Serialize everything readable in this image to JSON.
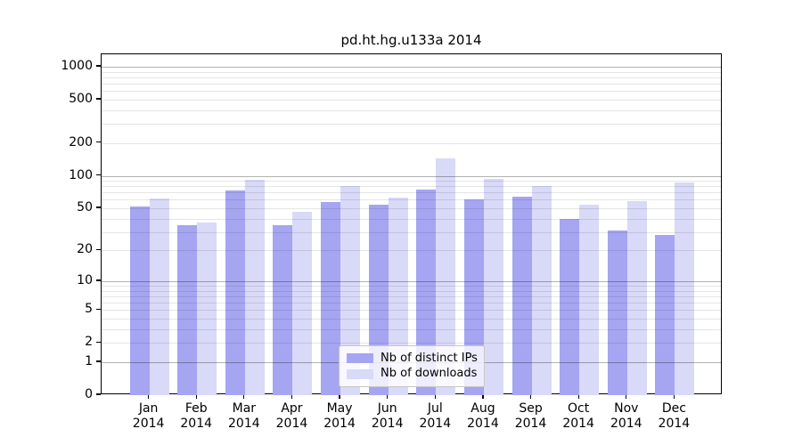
{
  "figure": {
    "background": "#ffffff",
    "text_color": "#000000",
    "spine_color": "#000000"
  },
  "chart_data": {
    "type": "bar",
    "title": "pd.ht.hg.u133a 2014",
    "categories": [
      "Jan 2014",
      "Feb 2014",
      "Mar 2014",
      "Apr 2014",
      "May 2014",
      "Jun 2014",
      "Jul 2014",
      "Aug 2014",
      "Sep 2014",
      "Oct 2014",
      "Nov 2014",
      "Dec 2014"
    ],
    "x_tick_lines": [
      [
        "Jan",
        "2014"
      ],
      [
        "Feb",
        "2014"
      ],
      [
        "Mar",
        "2014"
      ],
      [
        "Apr",
        "2014"
      ],
      [
        "May",
        "2014"
      ],
      [
        "Jun",
        "2014"
      ],
      [
        "Jul",
        "2014"
      ],
      [
        "Aug",
        "2014"
      ],
      [
        "Sep",
        "2014"
      ],
      [
        "Oct",
        "2014"
      ],
      [
        "Nov",
        "2014"
      ],
      [
        "Dec",
        "2014"
      ]
    ],
    "series": [
      {
        "name": "Nb of distinct IPs",
        "color": "#a5a5f2",
        "values": [
          52,
          35,
          73,
          35,
          57,
          54,
          75,
          60,
          64,
          40,
          31,
          28
        ]
      },
      {
        "name": "Nb of downloads",
        "color": "#d9d9f8",
        "values": [
          62,
          37,
          91,
          46,
          81,
          63,
          145,
          93,
          80,
          54,
          58,
          87
        ]
      }
    ],
    "y_axis": {
      "scale": "log1p",
      "tick_values": [
        0,
        1,
        2,
        5,
        10,
        20,
        50,
        100,
        200,
        500,
        1000
      ],
      "tick_labels": [
        "0",
        "1",
        "2",
        "5",
        "10",
        "20",
        "50",
        "100",
        "200",
        "500",
        "1000"
      ],
      "major_gridline_values": [
        1,
        10,
        100,
        1000
      ],
      "ylim": [
        0,
        1320
      ],
      "grid": true,
      "grid_above_bars": true
    },
    "xlabel": "",
    "ylabel": "",
    "legend": {
      "position": "lower center",
      "items": [
        {
          "label": "Nb of distinct IPs",
          "color": "#a5a5f2"
        },
        {
          "label": "Nb of downloads",
          "color": "#d9d9f8"
        }
      ]
    }
  }
}
